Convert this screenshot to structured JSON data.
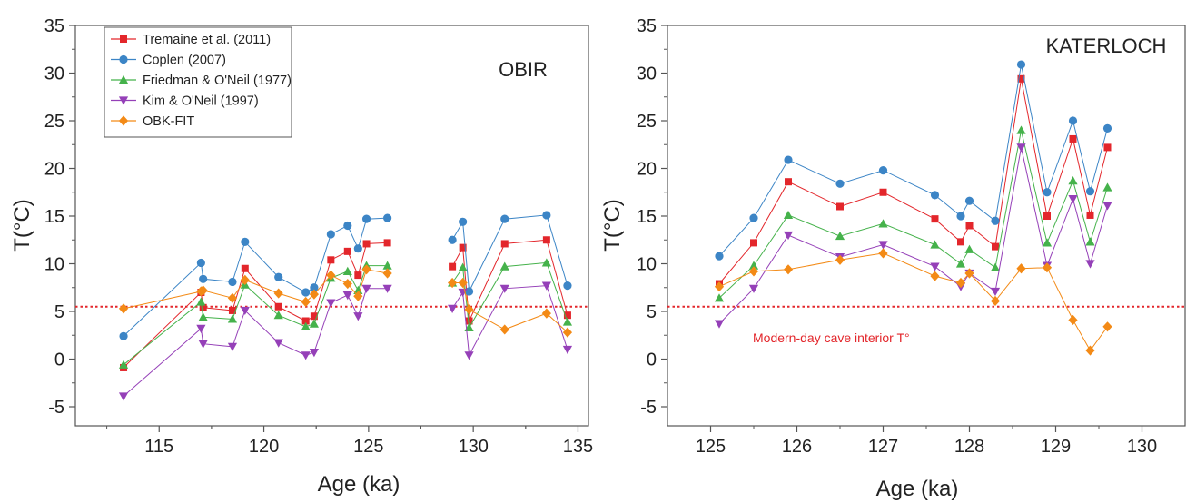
{
  "chart_data": [
    {
      "type": "line",
      "panel_label": "OBIR",
      "xlabel": "Age (ka)",
      "ylabel": "T(°C)",
      "xlim": [
        111,
        135.5
      ],
      "ylim": [
        -7,
        35
      ],
      "x_ticks": [
        115,
        120,
        125,
        130,
        135
      ],
      "y_ticks": [
        -5,
        0,
        5,
        10,
        15,
        20,
        25,
        30,
        35
      ],
      "grid": false,
      "legend_position": "top-left",
      "reference_line": {
        "y": 5.5,
        "color": "#e3262b",
        "style": "dotted"
      },
      "series": [
        {
          "name": "Tremaine et al. (2011)",
          "color": "#e3262b",
          "marker": "square",
          "x": [
            113.3,
            117.0,
            117.1,
            118.5,
            119.1,
            120.7,
            122.0,
            122.4,
            123.2,
            124.0,
            124.5,
            124.9,
            125.9,
            null,
            129.0,
            129.5,
            129.8,
            131.5,
            133.5,
            134.5
          ],
          "y": [
            -0.9,
            7.0,
            5.4,
            5.1,
            9.5,
            5.5,
            4.0,
            4.5,
            10.4,
            11.3,
            8.8,
            12.1,
            12.2,
            null,
            9.7,
            11.7,
            4.0,
            12.1,
            12.5,
            4.6
          ]
        },
        {
          "name": "Coplen (2007)",
          "color": "#3c85c6",
          "marker": "circle",
          "x": [
            113.3,
            117.0,
            117.1,
            118.5,
            119.1,
            120.7,
            122.0,
            122.4,
            123.2,
            124.0,
            124.5,
            124.9,
            125.9,
            null,
            129.0,
            129.5,
            129.8,
            131.5,
            133.5,
            134.5
          ],
          "y": [
            2.4,
            10.1,
            8.4,
            8.1,
            12.3,
            8.6,
            7.0,
            7.5,
            13.1,
            14.0,
            11.6,
            14.7,
            14.8,
            null,
            12.5,
            14.4,
            7.1,
            14.7,
            15.1,
            7.7
          ]
        },
        {
          "name": "Friedman & O'Neil (1977)",
          "color": "#45b24b",
          "marker": "triangle-up",
          "x": [
            113.3,
            117.0,
            117.1,
            118.5,
            119.1,
            120.7,
            122.0,
            122.4,
            123.2,
            124.0,
            124.5,
            124.9,
            125.9,
            null,
            129.0,
            129.5,
            129.8,
            131.5,
            133.5,
            134.5
          ],
          "y": [
            -0.6,
            6.0,
            4.4,
            4.2,
            7.8,
            4.6,
            3.4,
            3.7,
            8.5,
            9.2,
            7.2,
            9.8,
            9.8,
            null,
            8.0,
            9.6,
            3.3,
            9.7,
            10.1,
            3.9
          ]
        },
        {
          "name": "Kim & O'Neil (1997)",
          "color": "#9540b8",
          "marker": "triangle-down",
          "x": [
            113.3,
            117.0,
            117.1,
            118.5,
            119.1,
            120.7,
            122.0,
            122.4,
            123.2,
            124.0,
            124.5,
            124.9,
            125.9,
            null,
            129.0,
            129.5,
            129.8,
            131.5,
            133.5,
            134.5
          ],
          "y": [
            -3.9,
            3.2,
            1.6,
            1.3,
            5.1,
            1.7,
            0.4,
            0.7,
            5.9,
            6.7,
            4.5,
            7.4,
            7.4,
            null,
            5.3,
            7.0,
            0.4,
            7.4,
            7.7,
            1.0
          ]
        },
        {
          "name": "OBK-FIT",
          "color": "#f38a16",
          "marker": "diamond",
          "x": [
            113.3,
            117.0,
            117.1,
            118.5,
            119.1,
            120.7,
            122.0,
            122.4,
            123.2,
            124.0,
            124.5,
            124.9,
            125.9,
            null,
            129.0,
            129.5,
            129.8,
            131.5,
            133.5,
            134.5
          ],
          "y": [
            5.3,
            7.1,
            7.2,
            6.4,
            8.3,
            6.9,
            6.0,
            6.8,
            8.8,
            7.9,
            6.6,
            9.4,
            9.0,
            null,
            8.0,
            8.0,
            5.2,
            3.1,
            4.8,
            2.8
          ]
        }
      ]
    },
    {
      "type": "line",
      "panel_label": "KATERLOCH",
      "xlabel": "Age (ka)",
      "ylabel": "T(°C)",
      "xlim": [
        124.5,
        130.5
      ],
      "ylim": [
        -7,
        35
      ],
      "x_ticks": [
        125,
        126,
        127,
        128,
        129,
        130
      ],
      "y_ticks": [
        -5,
        0,
        5,
        10,
        15,
        20,
        25,
        30,
        35
      ],
      "grid": false,
      "reference_line": {
        "y": 5.5,
        "color": "#e3262b",
        "style": "dotted",
        "label": "Modern-day cave interior T°"
      },
      "series": [
        {
          "color": "#e3262b",
          "marker": "square",
          "x": [
            125.1,
            125.5,
            125.9,
            126.5,
            127.0,
            127.6,
            127.9,
            128.0,
            128.3,
            128.6,
            128.9,
            129.2,
            129.4,
            129.6
          ],
          "y": [
            7.9,
            12.2,
            18.6,
            16.0,
            17.5,
            14.7,
            12.3,
            14.0,
            11.8,
            29.4,
            15.0,
            23.1,
            15.1,
            22.2
          ]
        },
        {
          "color": "#3c85c6",
          "marker": "circle",
          "x": [
            125.1,
            125.5,
            125.9,
            126.5,
            127.0,
            127.6,
            127.9,
            128.0,
            128.3,
            128.6,
            128.9,
            129.2,
            129.4,
            129.6
          ],
          "y": [
            10.8,
            14.8,
            20.9,
            18.4,
            19.8,
            17.2,
            15.0,
            16.6,
            14.5,
            30.9,
            17.5,
            25.0,
            17.6,
            24.2
          ]
        },
        {
          "color": "#45b24b",
          "marker": "triangle-up",
          "x": [
            125.1,
            125.5,
            125.9,
            126.5,
            127.0,
            127.6,
            127.9,
            128.0,
            128.3,
            128.6,
            128.9,
            129.2,
            129.4,
            129.6
          ],
          "y": [
            6.4,
            9.8,
            15.1,
            12.9,
            14.2,
            12.0,
            10.0,
            11.5,
            9.6,
            24.0,
            12.2,
            18.7,
            12.3,
            18.0
          ]
        },
        {
          "color": "#9540b8",
          "marker": "triangle-down",
          "x": [
            125.1,
            125.5,
            125.9,
            126.5,
            127.0,
            127.6,
            127.9,
            128.0,
            128.3,
            128.6,
            128.9,
            129.2,
            129.4,
            129.6
          ],
          "y": [
            3.7,
            7.4,
            13.0,
            10.7,
            12.0,
            9.7,
            7.6,
            9.0,
            7.1,
            22.2,
            9.8,
            16.8,
            10.0,
            16.1
          ]
        },
        {
          "color": "#f38a16",
          "marker": "diamond",
          "x": [
            125.1,
            125.5,
            125.9,
            126.5,
            127.0,
            127.6,
            127.9,
            128.0,
            128.3,
            128.6,
            128.9,
            129.2,
            129.4,
            129.6
          ],
          "y": [
            7.6,
            9.2,
            9.4,
            10.4,
            11.1,
            8.7,
            8.0,
            9.0,
            6.1,
            9.5,
            9.6,
            4.1,
            0.9,
            3.4
          ]
        }
      ]
    }
  ]
}
